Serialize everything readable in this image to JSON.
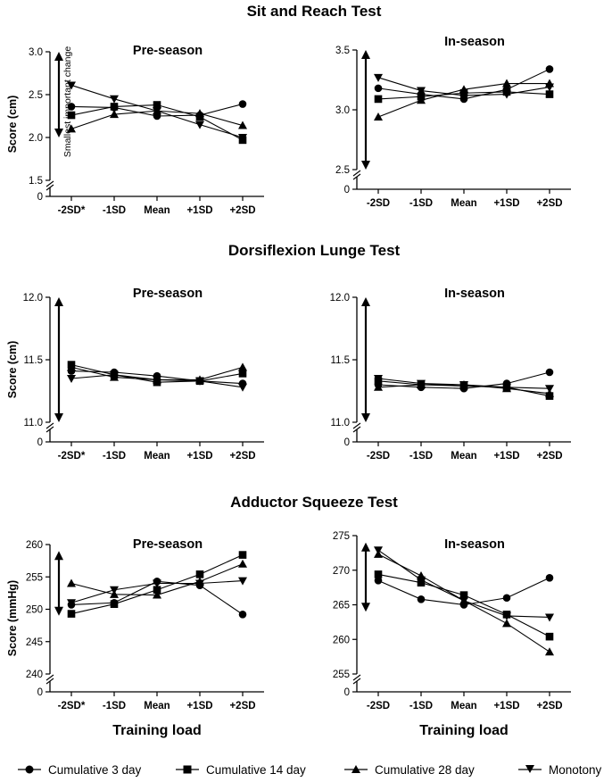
{
  "legend": [
    {
      "label": "Cumulative 3 day",
      "marker": "circle"
    },
    {
      "label": "Cumulative 14 day",
      "marker": "square"
    },
    {
      "label": "Cumulative 28 day",
      "marker": "triangle-up"
    },
    {
      "label": "Monotony",
      "marker": "triangle-down"
    }
  ],
  "annotation": {
    "smallest_change": "Smallest important change"
  },
  "chart_data": [
    {
      "type": "line",
      "group_title": "Sit and Reach Test",
      "title": "Pre-season",
      "ylabel": "Score (cm)",
      "xlabel": "",
      "categories": [
        "-2SD*",
        "-1SD",
        "Mean",
        "+1SD",
        "+2SD"
      ],
      "y_ticks": [
        1.5,
        2.0,
        2.5,
        3.0
      ],
      "y_tick_labels": [
        "1.5",
        "2.0",
        "2.5",
        "3.0"
      ],
      "ylim": [
        1.5,
        3.0
      ],
      "zero_label": "0",
      "arrow_range": [
        2.0,
        3.0
      ],
      "arrow_label": true,
      "series": [
        {
          "name": "Cumulative 3 day",
          "values": [
            2.36,
            2.35,
            2.25,
            2.26,
            2.39
          ]
        },
        {
          "name": "Cumulative 14 day",
          "values": [
            2.26,
            2.36,
            2.38,
            2.24,
            1.97
          ]
        },
        {
          "name": "Cumulative 28 day",
          "values": [
            2.1,
            2.27,
            2.31,
            2.28,
            2.14
          ]
        },
        {
          "name": "Monotony",
          "values": [
            2.61,
            2.45,
            2.31,
            2.15,
            2.0
          ]
        }
      ]
    },
    {
      "type": "line",
      "group_title": "Sit and Reach Test",
      "title": "In-season",
      "ylabel": "",
      "xlabel": "",
      "categories": [
        "-2SD",
        "-1SD",
        "Mean",
        "+1SD",
        "+2SD"
      ],
      "y_ticks": [
        2.5,
        3.0,
        3.5
      ],
      "y_tick_labels": [
        "2.5",
        "3.0",
        "3.5"
      ],
      "ylim": [
        2.5,
        3.5
      ],
      "zero_label": "0",
      "arrow_range": [
        2.5,
        3.5
      ],
      "arrow_label": false,
      "series": [
        {
          "name": "Cumulative 3 day",
          "values": [
            3.18,
            3.13,
            3.09,
            3.17,
            3.34
          ]
        },
        {
          "name": "Cumulative 14 day",
          "values": [
            3.09,
            3.11,
            3.14,
            3.15,
            3.13
          ]
        },
        {
          "name": "Cumulative 28 day",
          "values": [
            2.94,
            3.08,
            3.17,
            3.22,
            3.22
          ]
        },
        {
          "name": "Monotony",
          "values": [
            3.27,
            3.16,
            3.12,
            3.13,
            3.19
          ]
        }
      ]
    },
    {
      "type": "line",
      "group_title": "Dorsiflexion Lunge Test",
      "title": "Pre-season",
      "ylabel": "Score (cm)",
      "xlabel": "",
      "categories": [
        "-2SD*",
        "-1SD",
        "Mean",
        "+1SD",
        "+2SD"
      ],
      "y_ticks": [
        11.0,
        11.5,
        12.0
      ],
      "y_tick_labels": [
        "11.0",
        "11.5",
        "12.0"
      ],
      "ylim": [
        11.0,
        12.0
      ],
      "zero_label": "0",
      "arrow_range": [
        11.0,
        12.0
      ],
      "arrow_label": false,
      "series": [
        {
          "name": "Cumulative 3 day",
          "values": [
            11.41,
            11.4,
            11.37,
            11.33,
            11.31
          ]
        },
        {
          "name": "Cumulative 14 day",
          "values": [
            11.46,
            11.38,
            11.32,
            11.33,
            11.39
          ]
        },
        {
          "name": "Cumulative 28 day",
          "values": [
            11.44,
            11.36,
            11.34,
            11.34,
            11.44
          ]
        },
        {
          "name": "Monotony",
          "values": [
            11.35,
            11.38,
            11.34,
            11.33,
            11.28
          ]
        }
      ]
    },
    {
      "type": "line",
      "group_title": "Dorsiflexion Lunge Test",
      "title": "In-season",
      "ylabel": "",
      "xlabel": "",
      "categories": [
        "-2SD",
        "-1SD",
        "Mean",
        "+1SD",
        "+2SD"
      ],
      "y_ticks": [
        11.0,
        11.5,
        12.0
      ],
      "y_tick_labels": [
        "11.0",
        "11.5",
        "12.0"
      ],
      "ylim": [
        11.0,
        12.0
      ],
      "zero_label": "0",
      "arrow_range": [
        11.0,
        12.0
      ],
      "arrow_label": false,
      "series": [
        {
          "name": "Cumulative 3 day",
          "values": [
            11.3,
            11.28,
            11.27,
            11.31,
            11.4
          ]
        },
        {
          "name": "Cumulative 14 day",
          "values": [
            11.33,
            11.3,
            11.29,
            11.28,
            11.21
          ]
        },
        {
          "name": "Cumulative 28 day",
          "values": [
            11.28,
            11.3,
            11.3,
            11.27,
            11.23
          ]
        },
        {
          "name": "Monotony",
          "values": [
            11.35,
            11.31,
            11.3,
            11.28,
            11.27
          ]
        }
      ]
    },
    {
      "type": "line",
      "group_title": "Adductor Squeeze Test",
      "title": "Pre-season",
      "ylabel": "Score (mmHg)",
      "xlabel": "Training load",
      "categories": [
        "-2SD*",
        "-1SD",
        "Mean",
        "+1SD",
        "+2SD"
      ],
      "y_ticks": [
        240,
        245,
        250,
        255,
        260
      ],
      "y_tick_labels": [
        "240",
        "245",
        "250",
        "255",
        "260"
      ],
      "ylim": [
        240,
        260
      ],
      "zero_label": "0",
      "arrow_range": [
        249,
        259
      ],
      "arrow_label": false,
      "series": [
        {
          "name": "Cumulative 3 day",
          "values": [
            250.7,
            251.0,
            254.3,
            253.7,
            249.2
          ]
        },
        {
          "name": "Cumulative 14 day",
          "values": [
            249.3,
            250.8,
            253.0,
            255.4,
            258.4
          ]
        },
        {
          "name": "Cumulative 28 day",
          "values": [
            254.0,
            252.3,
            252.2,
            254.3,
            257.0
          ]
        },
        {
          "name": "Monotony",
          "values": [
            251.0,
            253.0,
            254.0,
            254.0,
            254.4
          ]
        }
      ]
    },
    {
      "type": "line",
      "group_title": "Adductor Squeeze Test",
      "title": "In-season",
      "ylabel": "",
      "xlabel": "Training load",
      "categories": [
        "-2SD",
        "-1SD",
        "Mean",
        "+1SD",
        "+2SD"
      ],
      "y_ticks": [
        255,
        260,
        265,
        270,
        275
      ],
      "y_tick_labels": [
        "255",
        "260",
        "265",
        "270",
        "275"
      ],
      "ylim": [
        255,
        275
      ],
      "zero_label": "0",
      "arrow_range": [
        264,
        274
      ],
      "arrow_label": false,
      "series": [
        {
          "name": "Cumulative 3 day",
          "values": [
            268.5,
            265.8,
            265.0,
            266.0,
            268.9
          ]
        },
        {
          "name": "Cumulative 14 day",
          "values": [
            269.4,
            268.2,
            266.4,
            263.6,
            260.4
          ]
        },
        {
          "name": "Cumulative 28 day",
          "values": [
            272.3,
            269.2,
            265.6,
            262.3,
            258.2
          ]
        },
        {
          "name": "Monotony",
          "values": [
            272.9,
            268.6,
            265.6,
            263.4,
            263.2
          ]
        }
      ]
    }
  ]
}
